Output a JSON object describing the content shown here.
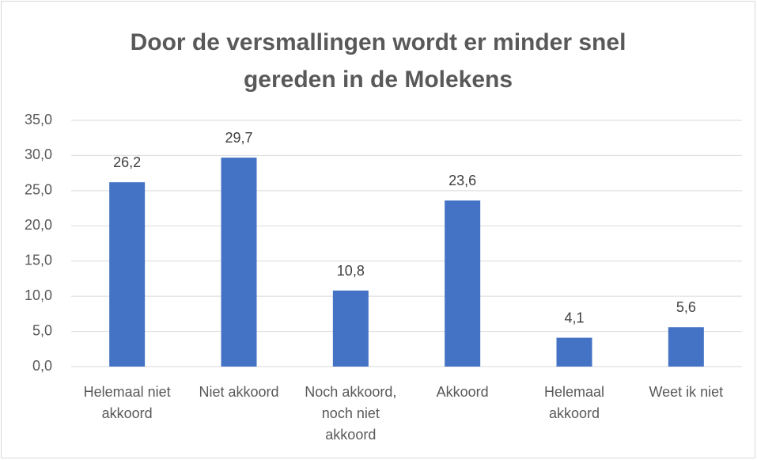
{
  "chart_data": {
    "type": "bar",
    "title": "Door de versmallingen wordt er minder snel gereden in de Molekens",
    "categories": [
      "Helemaal niet akkoord",
      "Niet akkoord",
      "Noch akkoord, noch niet akkoord",
      "Akkoord",
      "Helemaal akkoord",
      "Weet ik niet"
    ],
    "values": [
      26.2,
      29.7,
      10.8,
      23.6,
      4.1,
      5.6
    ],
    "value_labels": [
      "26,2",
      "29,7",
      "10,8",
      "23,6",
      "4,1",
      "5,6"
    ],
    "color": "#4472c4",
    "ylim": [
      0,
      35
    ],
    "yticks": [
      {
        "value": 0,
        "label": "0,0"
      },
      {
        "value": 5,
        "label": "5,0"
      },
      {
        "value": 10,
        "label": "10,0"
      },
      {
        "value": 15,
        "label": "15,0"
      },
      {
        "value": 20,
        "label": "20,0"
      },
      {
        "value": 25,
        "label": "25,0"
      },
      {
        "value": 30,
        "label": "30,0"
      },
      {
        "value": 35,
        "label": "35,0"
      }
    ],
    "grid": true
  }
}
